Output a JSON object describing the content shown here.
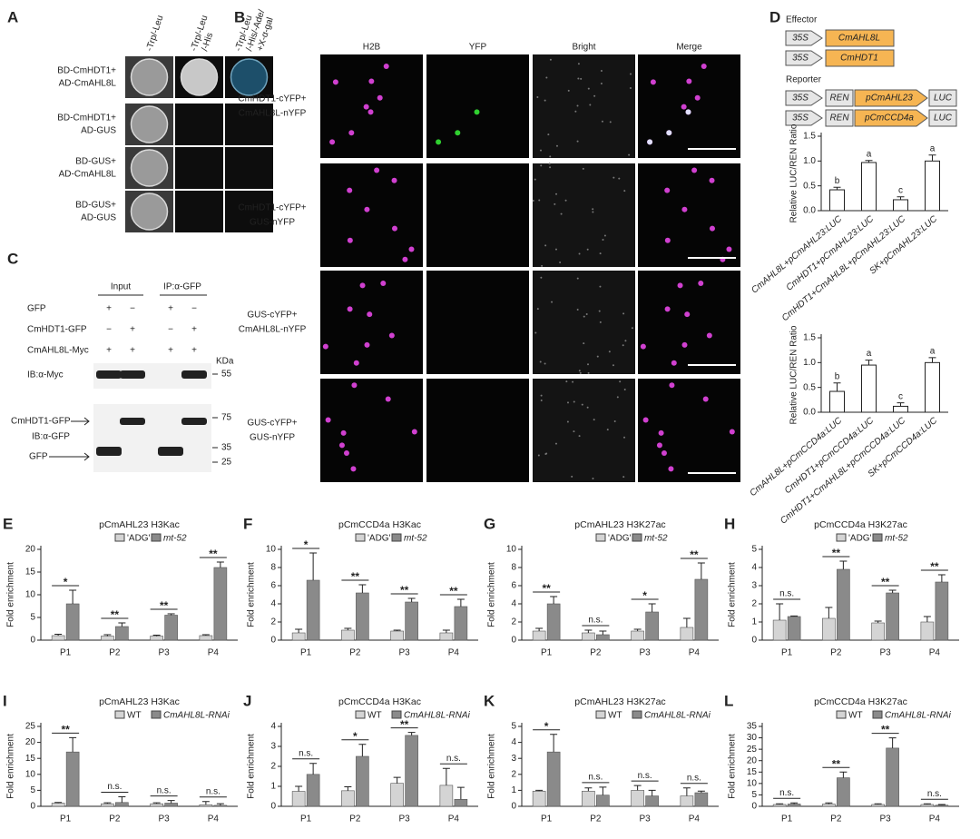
{
  "panels": {
    "A": {
      "label": "A",
      "columns": [
        [
          "-Trp/-Leu"
        ],
        [
          "-Trp/-Leu",
          "/-His"
        ],
        [
          "-Trp/-Leu",
          "/-His/-Ade/",
          "+X-α-gal"
        ]
      ],
      "rows": [
        [
          "BD-CmHDT1+",
          "AD-CmAHL8L"
        ],
        [
          "BD-CmHDT1+",
          "AD-GUS"
        ],
        [
          "BD-GUS+",
          "AD-CmAHL8L"
        ],
        [
          "BD-GUS+",
          "AD-GUS"
        ]
      ]
    },
    "B": {
      "label": "B",
      "columns": [
        "H2B",
        "YFP",
        "Bright",
        "Merge"
      ],
      "rows": [
        [
          "CmHDT1-cYFP+",
          "CmAHL8L-nYFP"
        ],
        [
          "CmHDT1-cYFP+",
          "GUS-nYFP"
        ],
        [
          "GUS-cYFP+",
          "CmAHL8L-nYFP"
        ],
        [
          "GUS-cYFP+",
          "GUS-nYFP"
        ]
      ]
    },
    "C": {
      "label": "C",
      "groups": [
        "Input",
        "IP:α-GFP"
      ],
      "rows": [
        "GFP",
        "CmHDT1-GFP",
        "CmAHL8L-Myc"
      ],
      "signs": [
        [
          "+",
          "−",
          "+",
          "−"
        ],
        [
          "−",
          "+",
          "−",
          "+"
        ],
        [
          "+",
          "+",
          "+",
          "+"
        ]
      ],
      "blot1": "IB:α-Myc",
      "unit": "KDa",
      "marker1": "55",
      "blot2_bands": [
        "CmHDT1-GFP",
        "GFP"
      ],
      "blot2": "IB:α-GFP",
      "markers2": [
        "75",
        "35",
        "25"
      ]
    },
    "D": {
      "label": "D",
      "effector_title": "Effector",
      "effector": [
        {
          "promoter": "35S",
          "gene": "CmAHL8L"
        },
        {
          "promoter": "35S",
          "gene": "CmHDT1"
        }
      ],
      "reporter_title": "Reporter",
      "reporter": [
        {
          "promoter": "35S",
          "ren": "REN",
          "target": "pCmAHL23",
          "luc": "LUC"
        },
        {
          "promoter": "35S",
          "ren": "REN",
          "target": "pCmCCD4a",
          "luc": "LUC"
        }
      ]
    }
  },
  "chart_data": [
    {
      "type": "bar",
      "ylabel": "Relative LUC/REN Ratio",
      "categories": [
        "CmAHL8L+pCmAHL23:LUC",
        "CmHDT1+pCmAHL23:LUC",
        "CmHDT1+CmAHL8L+pCmAHL23:LUC",
        "SK+pCmAHL23:LUC"
      ],
      "values": [
        0.42,
        0.97,
        0.22,
        1.0
      ],
      "errors": [
        0.05,
        0.04,
        0.06,
        0.12
      ],
      "letters": [
        "b",
        "a",
        "c",
        "a"
      ],
      "color": "#ffffff",
      "ylim": [
        0,
        1.5
      ],
      "yticks": [
        {
          "value": 0,
          "label": "0.0"
        },
        0.5,
        {
          "value": 1,
          "label": "1.0"
        },
        1.5
      ]
    },
    {
      "type": "bar",
      "ylabel": "Relative LUC/REN Ratio",
      "categories": [
        "CmAHL8L+pCmCCD4a:LUC",
        "CmHDT1+pCmCCD4a:LUC",
        "CmHDT1+CmAHL8L+pCmCCD4a:LUC",
        "SK+pCmCCD4a:LUC"
      ],
      "values": [
        0.42,
        0.95,
        0.12,
        1.0
      ],
      "errors": [
        0.17,
        0.1,
        0.07,
        0.1
      ],
      "letters": [
        "b",
        "a",
        "c",
        "a"
      ],
      "color": "#ffffff",
      "ylim": [
        0,
        1.5
      ],
      "yticks": [
        {
          "value": 0,
          "label": "0.0"
        },
        0.5,
        {
          "value": 1,
          "label": "1.0"
        },
        1.5
      ]
    },
    {
      "type": "grouped_bar",
      "panel": "E",
      "title": "pCmAHL23 H3Kac",
      "ylabel": "Fold enrichment",
      "categories": [
        "P1",
        "P2",
        "P3",
        "P4"
      ],
      "series": [
        {
          "name": "'ADG'",
          "color": "#d4d4d4",
          "values": [
            1,
            0.9,
            0.9,
            1
          ],
          "errors": [
            0.3,
            0.3,
            0.2,
            0.2
          ]
        },
        {
          "name": "mt-52",
          "color": "#8a8a8a",
          "values": [
            8,
            3,
            5.5,
            16
          ],
          "errors": [
            3,
            0.8,
            0.3,
            1.2
          ]
        }
      ],
      "significance": [
        "*",
        "**",
        "**",
        "**"
      ],
      "ylim": [
        0,
        20
      ],
      "yticks": [
        0,
        5,
        10,
        15,
        20
      ]
    },
    {
      "type": "grouped_bar",
      "panel": "F",
      "title": "pCmCCD4a H3Kac",
      "ylabel": "Fold enrichment",
      "categories": [
        "P1",
        "P2",
        "P3",
        "P4"
      ],
      "series": [
        {
          "name": "'ADG'",
          "color": "#d4d4d4",
          "values": [
            0.8,
            1.1,
            1,
            0.8
          ],
          "errors": [
            0.4,
            0.2,
            0.1,
            0.3
          ]
        },
        {
          "name": "mt-52",
          "color": "#8a8a8a",
          "values": [
            6.6,
            5.2,
            4.2,
            3.7
          ],
          "errors": [
            3,
            0.9,
            0.4,
            0.8
          ]
        }
      ],
      "significance": [
        "*",
        "**",
        "**",
        "**"
      ],
      "ylim": [
        0,
        10
      ],
      "yticks": [
        0,
        2,
        4,
        6,
        8,
        10
      ]
    },
    {
      "type": "grouped_bar",
      "panel": "G",
      "title": "pCmAHL23 H3K27ac",
      "ylabel": "Fold enrichment",
      "categories": [
        "P1",
        "P2",
        "P3",
        "P4"
      ],
      "series": [
        {
          "name": "'ADG'",
          "color": "#d4d4d4",
          "values": [
            1,
            0.8,
            1,
            1.4
          ],
          "errors": [
            0.3,
            0.3,
            0.2,
            1
          ]
        },
        {
          "name": "mt-52",
          "color": "#8a8a8a",
          "values": [
            4,
            0.6,
            3.1,
            6.7
          ],
          "errors": [
            0.8,
            0.4,
            0.9,
            1.8
          ]
        }
      ],
      "significance": [
        "**",
        "n.s.",
        "*",
        "**"
      ],
      "ylim": [
        0,
        10
      ],
      "yticks": [
        0,
        2,
        4,
        6,
        8,
        10
      ]
    },
    {
      "type": "grouped_bar",
      "panel": "H",
      "title": "pCmCCD4a H3K27ac",
      "ylabel": "Fold enrichment",
      "categories": [
        "P1",
        "P2",
        "P3",
        "P4"
      ],
      "series": [
        {
          "name": "'ADG'",
          "color": "#d4d4d4",
          "values": [
            1.1,
            1.2,
            0.95,
            1
          ],
          "errors": [
            0.9,
            0.6,
            0.1,
            0.3
          ]
        },
        {
          "name": "mt-52",
          "color": "#8a8a8a",
          "values": [
            1.3,
            3.9,
            2.6,
            3.2
          ],
          "errors": [
            0.03,
            0.45,
            0.15,
            0.4
          ]
        }
      ],
      "significance": [
        "n.s.",
        "**",
        "**",
        "**"
      ],
      "ylim": [
        0,
        5
      ],
      "yticks": [
        0,
        1,
        2,
        3,
        4,
        5
      ]
    },
    {
      "type": "grouped_bar",
      "panel": "I",
      "title": "pCmAHL23 H3Kac",
      "ylabel": "Fold enrichment",
      "categories": [
        "P1",
        "P2",
        "P3",
        "P4"
      ],
      "series": [
        {
          "name": "WT",
          "color": "#d4d4d4",
          "values": [
            1,
            0.8,
            0.8,
            0.5
          ],
          "errors": [
            0.2,
            0.3,
            0.3,
            1
          ]
        },
        {
          "name": "CmAHL8L-RNAi",
          "color": "#8a8a8a",
          "values": [
            17,
            1.2,
            1,
            0.3
          ],
          "errors": [
            4.5,
            1.8,
            0.8,
            0.5
          ]
        }
      ],
      "significance": [
        "**",
        "n.s.",
        "n.s.",
        "n.s."
      ],
      "ylim": [
        0,
        25
      ],
      "yticks": [
        0,
        5,
        10,
        15,
        20,
        25
      ]
    },
    {
      "type": "grouped_bar",
      "panel": "J",
      "title": "pCmCCD4a H3Kac",
      "ylabel": "Fold enrichment",
      "categories": [
        "P1",
        "P2",
        "P3",
        "P4"
      ],
      "series": [
        {
          "name": "WT",
          "color": "#d4d4d4",
          "values": [
            0.75,
            0.78,
            1.15,
            1.05
          ],
          "errors": [
            0.25,
            0.2,
            0.3,
            0.85
          ]
        },
        {
          "name": "CmAHL8L-RNAi",
          "color": "#8a8a8a",
          "values": [
            1.6,
            2.5,
            3.55,
            0.35
          ],
          "errors": [
            0.55,
            0.6,
            0.15,
            0.6
          ]
        }
      ],
      "significance": [
        "n.s.",
        "*",
        "**",
        "n.s."
      ],
      "ylim": [
        0,
        4
      ],
      "yticks": [
        0,
        1,
        2,
        3,
        4
      ]
    },
    {
      "type": "grouped_bar",
      "panel": "K",
      "title": "pCmAHL23 H3K27ac",
      "ylabel": "Fold enrichment",
      "categories": [
        "P1",
        "P2",
        "P3",
        "P4"
      ],
      "series": [
        {
          "name": "WT",
          "color": "#d4d4d4",
          "values": [
            0.95,
            0.95,
            1,
            0.65
          ],
          "errors": [
            0.05,
            0.2,
            0.3,
            0.5
          ]
        },
        {
          "name": "CmAHL8L-RNAi",
          "color": "#8a8a8a",
          "values": [
            3.4,
            0.7,
            0.65,
            0.85
          ],
          "errors": [
            1.1,
            0.5,
            0.35,
            0.1
          ]
        }
      ],
      "significance": [
        "*",
        "n.s.",
        "n.s.",
        "n.s."
      ],
      "ylim": [
        0,
        5
      ],
      "yticks": [
        0,
        1,
        2,
        3,
        4,
        5
      ]
    },
    {
      "type": "grouped_bar",
      "panel": "L",
      "title": "pCmCCD4a H3K27ac",
      "ylabel": "Fold enrichment",
      "categories": [
        "P1",
        "P2",
        "P3",
        "P4"
      ],
      "series": [
        {
          "name": "WT",
          "color": "#d4d4d4",
          "values": [
            0.8,
            1,
            0.8,
            0.8
          ],
          "errors": [
            0.3,
            0.5,
            0.3,
            0.3
          ]
        },
        {
          "name": "CmAHL8L-RNAi",
          "color": "#8a8a8a",
          "values": [
            1,
            12.5,
            25.5,
            0.5
          ],
          "errors": [
            0.5,
            2.5,
            4.5,
            0.3
          ]
        }
      ],
      "significance": [
        "n.s.",
        "**",
        "**",
        "n.s."
      ],
      "ylim": [
        0,
        35
      ],
      "yticks": [
        0,
        5,
        10,
        15,
        20,
        25,
        30,
        35
      ]
    }
  ]
}
